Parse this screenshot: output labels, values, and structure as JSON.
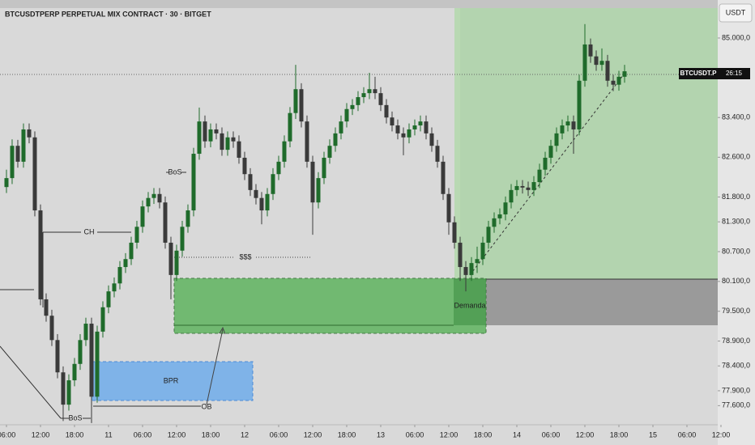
{
  "chart_data": {
    "type": "candlestick",
    "title": "BTCUSDTPERP PERPETUAL MIX CONTRACT · 30 · BITGET",
    "currency": "USDT",
    "price_label": {
      "symbol": "BTCUSDT.P",
      "countdown": "26:15"
    },
    "annotations": [
      "CH",
      "BoS",
      "BoS",
      "$$$",
      "BPR",
      "OB",
      "Demanda"
    ],
    "colors": {
      "up": "#1f6b2b",
      "down": "#3a3a3a"
    },
    "xlim": [
      -1.14,
      125.43
    ],
    "ylim": [
      77215,
      85765
    ],
    "xticks": [
      {
        "value": 0,
        "label": "06:00"
      },
      {
        "value": 6,
        "label": "12:00"
      },
      {
        "value": 12,
        "label": "18:00"
      },
      {
        "value": 18,
        "label": "11"
      },
      {
        "value": 24,
        "label": "06:00"
      },
      {
        "value": 30,
        "label": "12:00"
      },
      {
        "value": 36,
        "label": "18:00"
      },
      {
        "value": 42,
        "label": "12"
      },
      {
        "value": 48,
        "label": "06:00"
      },
      {
        "value": 54,
        "label": "12:00"
      },
      {
        "value": 60,
        "label": "18:00"
      },
      {
        "value": 66,
        "label": "13"
      },
      {
        "value": 72,
        "label": "06:00"
      },
      {
        "value": 78,
        "label": "12:00"
      },
      {
        "value": 84,
        "label": "18:00"
      },
      {
        "value": 90,
        "label": "14"
      },
      {
        "value": 96,
        "label": "06:00"
      },
      {
        "value": 102,
        "label": "12:00"
      },
      {
        "value": 108,
        "label": "18:00"
      },
      {
        "value": 114,
        "label": "15"
      },
      {
        "value": 120,
        "label": "06:00"
      },
      {
        "value": 126,
        "label": "12:00"
      }
    ],
    "yticks": [
      {
        "value": 85000,
        "label": "85.000,0"
      },
      {
        "value": 83400,
        "label": "83.400,0"
      },
      {
        "value": 82600,
        "label": "82.600,0"
      },
      {
        "value": 81800,
        "label": "81.800,0"
      },
      {
        "value": 81300,
        "label": "81.300,0"
      },
      {
        "value": 80700,
        "label": "80.700,0"
      },
      {
        "value": 80100,
        "label": "80.100,0"
      },
      {
        "value": 79500,
        "label": "79.500,0"
      },
      {
        "value": 78900,
        "label": "78.900,0"
      },
      {
        "value": 78400,
        "label": "78.400,0"
      },
      {
        "value": 77900,
        "label": "77.900,0"
      },
      {
        "value": 77600,
        "label": "77.600,0"
      }
    ],
    "candles": [
      [
        82000,
        82350,
        81880,
        82180
      ],
      [
        82180,
        82960,
        82060,
        82830
      ],
      [
        82830,
        82950,
        82390,
        82510
      ],
      [
        82510,
        83280,
        82390,
        83160
      ],
      [
        83160,
        83280,
        82880,
        83000
      ],
      [
        83000,
        83120,
        81410,
        81530
      ],
      [
        81530,
        81650,
        79620,
        79740
      ],
      [
        79740,
        79860,
        79290,
        79410
      ],
      [
        79410,
        79530,
        78800,
        78920
      ],
      [
        78920,
        79040,
        78150,
        78270
      ],
      [
        78270,
        78390,
        77290,
        77620
      ],
      [
        77620,
        78230,
        77500,
        78110
      ],
      [
        78110,
        78560,
        77990,
        78440
      ],
      [
        78440,
        79040,
        78320,
        78920
      ],
      [
        78920,
        79370,
        78800,
        79250
      ],
      [
        79250,
        79370,
        77250,
        77780
      ],
      [
        77780,
        79210,
        77660,
        79090
      ],
      [
        79090,
        79700,
        78970,
        79580
      ],
      [
        79580,
        80020,
        79460,
        79900
      ],
      [
        79900,
        80180,
        79780,
        80060
      ],
      [
        80060,
        80510,
        79940,
        80390
      ],
      [
        80390,
        80670,
        80270,
        80550
      ],
      [
        80550,
        81000,
        80430,
        80880
      ],
      [
        80880,
        81320,
        80760,
        81200
      ],
      [
        81200,
        81730,
        81080,
        81610
      ],
      [
        81610,
        81900,
        81490,
        81780
      ],
      [
        81780,
        81980,
        81660,
        81860
      ],
      [
        81860,
        81980,
        81570,
        81690
      ],
      [
        81690,
        81810,
        80760,
        80880
      ],
      [
        80880,
        81000,
        79740,
        80230
      ],
      [
        80230,
        80840,
        80110,
        80720
      ],
      [
        80720,
        81320,
        80600,
        81200
      ],
      [
        81200,
        81650,
        81080,
        81530
      ],
      [
        81530,
        82790,
        81410,
        82670
      ],
      [
        82670,
        83600,
        82550,
        83320
      ],
      [
        83320,
        83440,
        82790,
        82920
      ],
      [
        82920,
        83280,
        82800,
        83160
      ],
      [
        83160,
        83280,
        82960,
        83080
      ],
      [
        83080,
        83200,
        82630,
        82750
      ],
      [
        82750,
        83120,
        82630,
        83000
      ],
      [
        83000,
        83120,
        82790,
        82920
      ],
      [
        82920,
        83040,
        82470,
        82590
      ],
      [
        82590,
        82710,
        82140,
        82260
      ],
      [
        82260,
        82380,
        81820,
        81940
      ],
      [
        81940,
        82060,
        81650,
        81780
      ],
      [
        81780,
        81900,
        81250,
        81530
      ],
      [
        81530,
        81980,
        81410,
        81860
      ],
      [
        81860,
        82380,
        81740,
        82260
      ],
      [
        82260,
        82630,
        82140,
        82510
      ],
      [
        82510,
        83040,
        82390,
        82920
      ],
      [
        82920,
        83610,
        82800,
        83490
      ],
      [
        83490,
        84460,
        83370,
        83970
      ],
      [
        83970,
        84090,
        83200,
        83320
      ],
      [
        83320,
        83440,
        82390,
        82510
      ],
      [
        82510,
        82630,
        81040,
        81690
      ],
      [
        81690,
        82300,
        81570,
        82180
      ],
      [
        82180,
        82710,
        82060,
        82590
      ],
      [
        82590,
        82960,
        82470,
        82830
      ],
      [
        82830,
        83200,
        82710,
        83080
      ],
      [
        83080,
        83440,
        82960,
        83320
      ],
      [
        83320,
        83690,
        83200,
        83570
      ],
      [
        83570,
        83770,
        83450,
        83650
      ],
      [
        83650,
        83930,
        83530,
        83810
      ],
      [
        83810,
        84010,
        83690,
        83890
      ],
      [
        83890,
        84300,
        83770,
        83970
      ],
      [
        83970,
        84220,
        83770,
        83890
      ],
      [
        83890,
        84010,
        83530,
        83650
      ],
      [
        83650,
        83770,
        83280,
        83400
      ],
      [
        83400,
        83520,
        83120,
        83240
      ],
      [
        83240,
        83360,
        82960,
        83080
      ],
      [
        83080,
        83200,
        82640,
        83000
      ],
      [
        83000,
        83280,
        82880,
        83160
      ],
      [
        83160,
        83360,
        83040,
        83240
      ],
      [
        83240,
        83440,
        83120,
        83320
      ],
      [
        83320,
        83440,
        82960,
        83080
      ],
      [
        83080,
        83200,
        82710,
        82830
      ],
      [
        82830,
        82950,
        82390,
        82510
      ],
      [
        82510,
        82630,
        81740,
        81860
      ],
      [
        81860,
        81980,
        81040,
        81290
      ],
      [
        81290,
        81410,
        80760,
        80880
      ],
      [
        80880,
        81000,
        80110,
        80390
      ],
      [
        80390,
        80510,
        79900,
        80230
      ],
      [
        80230,
        80590,
        80110,
        80470
      ],
      [
        80470,
        80800,
        80270,
        80550
      ],
      [
        80550,
        81000,
        80430,
        80880
      ],
      [
        80880,
        81320,
        80760,
        81200
      ],
      [
        81200,
        81490,
        81080,
        81370
      ],
      [
        81370,
        81570,
        81250,
        81450
      ],
      [
        81450,
        81810,
        81330,
        81690
      ],
      [
        81690,
        82060,
        81570,
        81940
      ],
      [
        81940,
        82140,
        81820,
        82020
      ],
      [
        82020,
        82140,
        81870,
        81990
      ],
      [
        81990,
        82110,
        81820,
        81940
      ],
      [
        81940,
        82220,
        81820,
        82100
      ],
      [
        82100,
        82470,
        81980,
        82350
      ],
      [
        82350,
        82710,
        82230,
        82590
      ],
      [
        82590,
        82950,
        82470,
        82830
      ],
      [
        82830,
        83200,
        82710,
        83080
      ],
      [
        83080,
        83360,
        82960,
        83240
      ],
      [
        83240,
        83440,
        83120,
        83320
      ],
      [
        83320,
        83440,
        82670,
        83160
      ],
      [
        83160,
        84260,
        83040,
        84140
      ],
      [
        84140,
        85280,
        84020,
        84870
      ],
      [
        84870,
        84990,
        84500,
        84630
      ],
      [
        84630,
        84750,
        84340,
        84460
      ],
      [
        84460,
        84790,
        84340,
        84540
      ],
      [
        84540,
        84660,
        84020,
        84140
      ],
      [
        84140,
        84260,
        83930,
        84060
      ],
      [
        84060,
        84340,
        83940,
        84220
      ],
      [
        84220,
        84460,
        84100,
        84330
      ]
    ]
  }
}
